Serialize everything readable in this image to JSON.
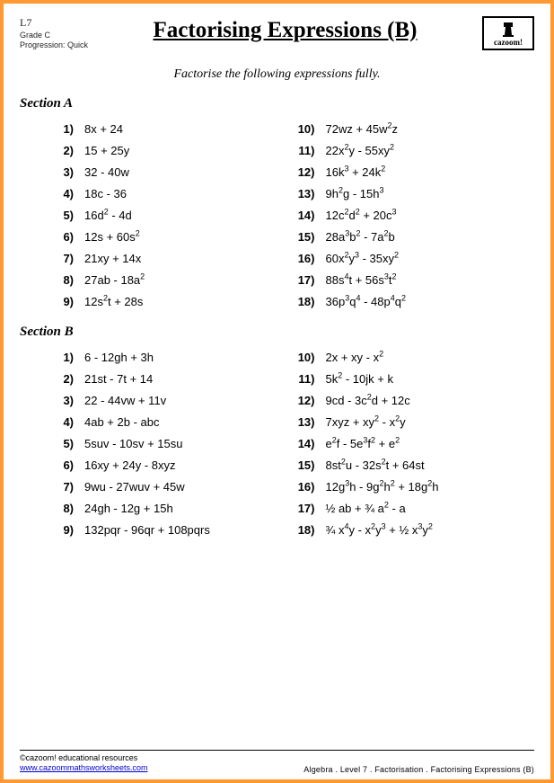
{
  "meta": {
    "level": "L7",
    "grade": "Grade C",
    "progression": "Progression: Quick"
  },
  "title": "Factorising Expressions (B)",
  "logo": {
    "label": "cazoom!"
  },
  "instruction": "Factorise the following expressions fully.",
  "sections": [
    {
      "title": "Section A",
      "left": [
        {
          "n": "1)",
          "e": "8x + 24"
        },
        {
          "n": "2)",
          "e": "15 + 25y"
        },
        {
          "n": "3)",
          "e": "32 - 40w"
        },
        {
          "n": "4)",
          "e": "18c  - 36"
        },
        {
          "n": "5)",
          "e": "16d<sup>2</sup> - 4d"
        },
        {
          "n": "6)",
          "e": "12s + 60s<sup>2</sup>"
        },
        {
          "n": "7)",
          "e": "21xy + 14x"
        },
        {
          "n": "8)",
          "e": "27ab - 18a<sup>2</sup>"
        },
        {
          "n": "9)",
          "e": "12s<sup>2</sup>t + 28s"
        }
      ],
      "right": [
        {
          "n": "10)",
          "e": "72wz + 45w<sup>2</sup>z"
        },
        {
          "n": "11)",
          "e": "22x<sup>2</sup>y - 55xy<sup>2</sup>"
        },
        {
          "n": "12)",
          "e": "16k<sup>3</sup> + 24k<sup>2</sup>"
        },
        {
          "n": "13)",
          "e": "9h<sup>2</sup>g - 15h<sup>3</sup>"
        },
        {
          "n": "14)",
          "e": "12c<sup>2</sup>d<sup>2</sup> + 20c<sup>3</sup>"
        },
        {
          "n": "15)",
          "e": "28a<sup>3</sup>b<sup>2</sup> - 7a<sup>2</sup>b"
        },
        {
          "n": "16)",
          "e": "60x<sup>2</sup>y<sup>3</sup> - 35xy<sup>2</sup>"
        },
        {
          "n": "17)",
          "e": "88s<sup>4</sup>t + 56s<sup>3</sup>t<sup>2</sup>"
        },
        {
          "n": "18)",
          "e": "36p<sup>3</sup>q<sup>4</sup> - 48p<sup>4</sup>q<sup>2</sup>"
        }
      ]
    },
    {
      "title": "Section B",
      "left": [
        {
          "n": "1)",
          "e": "6 - 12gh + 3h"
        },
        {
          "n": "2)",
          "e": "21st  - 7t + 14"
        },
        {
          "n": "3)",
          "e": "22 - 44vw + 11v"
        },
        {
          "n": "4)",
          "e": "4ab + 2b - abc"
        },
        {
          "n": "5)",
          "e": "5suv - 10sv + 15su"
        },
        {
          "n": "6)",
          "e": "16xy + 24y - 8xyz"
        },
        {
          "n": "7)",
          "e": "9wu - 27wuv + 45w"
        },
        {
          "n": "8)",
          "e": "24gh - 12g + 15h"
        },
        {
          "n": "9)",
          "e": "132pqr  - 96qr + 108pqrs"
        }
      ],
      "right": [
        {
          "n": "10)",
          "e": "2x + xy - x<sup>2</sup>"
        },
        {
          "n": "11)",
          "e": "5k<sup>2</sup> - 10jk + k"
        },
        {
          "n": "12)",
          "e": "9cd - 3c<sup>2</sup>d + 12c"
        },
        {
          "n": "13)",
          "e": "7xyz + xy<sup>2</sup> - x<sup>2</sup>y"
        },
        {
          "n": "14)",
          "e": "e<sup>2</sup>f - 5e<sup>3</sup>f<sup>2</sup> + e<sup>2</sup>"
        },
        {
          "n": "15)",
          "e": "8st<sup>2</sup>u - 32s<sup>2</sup>t + 64st"
        },
        {
          "n": "16)",
          "e": "12g<sup>3</sup>h - 9g<sup>2</sup>h<sup>2</sup> + 18g<sup>2</sup>h"
        },
        {
          "n": "17)",
          "e": "½ ab + ¾ a<sup>2</sup> - a"
        },
        {
          "n": "18)",
          "e": "¾ x<sup>4</sup>y - x<sup>2</sup>y<sup>3</sup> + ½ x<sup>3</sup>y<sup>2</sup>"
        }
      ]
    }
  ],
  "footer": {
    "copyright": "©cazoom! educational resources",
    "link": "www.cazoommathsworksheets.com",
    "breadcrumb": "Algebra   .   Level 7   .   Factorisation   .   Factorising Expressions (B)"
  },
  "style": {
    "page_border_color": "#ff9933",
    "background": "#ffffff",
    "title_fontsize": 25,
    "body_fontsize": 13
  }
}
